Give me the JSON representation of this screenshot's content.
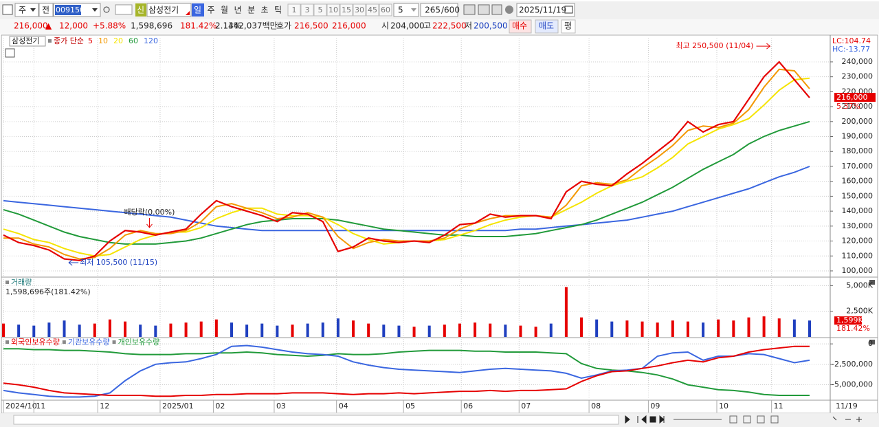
{
  "toolbar": {
    "market": "주",
    "scope": "전",
    "code": "009150",
    "badge": "신",
    "name": "삼성전기",
    "periods": [
      "일",
      "주",
      "월",
      "년",
      "분",
      "초",
      "틱"
    ],
    "intervals": [
      "1",
      "3",
      "5",
      "10",
      "15",
      "30",
      "45",
      "60"
    ],
    "count": "5",
    "shown": "265",
    "total": "/600",
    "date": "2025/11/19"
  },
  "info_bar": {
    "price": "216,000",
    "change_sign": "▲",
    "change": "12,000",
    "change_pct": "+5.88%",
    "volume": "1,598,696",
    "volume_ratio": "181.42%",
    "turnover": "2.14%",
    "amount": "342,037백만",
    "quote_label": "호가",
    "ask": "216,500",
    "bid": "216,000",
    "open_label": "시",
    "open": "204,000",
    "high_label": "고",
    "high": "222,500",
    "low_label": "저",
    "low": "200,500",
    "buy": "매수",
    "sell": "매도",
    "eval": "평"
  },
  "chart_data": [
    {
      "type": "line",
      "title": "삼성전기",
      "subtitle": "종가 단순",
      "grid": true,
      "xlim": [
        0,
        53
      ],
      "ylim": [
        96300,
        256100
      ],
      "yticks": [
        {
          "value": 100000,
          "label": "100,000"
        },
        {
          "value": 110000,
          "label": "110,000"
        },
        {
          "value": 120000,
          "label": "120,000"
        },
        {
          "value": 130000,
          "label": "130,000"
        },
        {
          "value": 140000,
          "label": "140,000"
        },
        {
          "value": 150000,
          "label": "150,000"
        },
        {
          "value": 160000,
          "label": "160,000"
        },
        {
          "value": 170000,
          "label": "170,000"
        },
        {
          "value": 180000,
          "label": "180,000"
        },
        {
          "value": 190000,
          "label": "190,000"
        },
        {
          "value": 200000,
          "label": "200,000"
        },
        {
          "value": 210000,
          "label": "210,000"
        },
        {
          "value": 220000,
          "label": "220,000"
        },
        {
          "value": 230000,
          "label": "230,000"
        },
        {
          "value": 240000,
          "label": "240,000"
        }
      ],
      "series": [
        {
          "name": "5",
          "color": "#e60000",
          "values": [
            124000,
            119000,
            117000,
            114000,
            108000,
            107000,
            110000,
            120000,
            127000,
            126000,
            124000,
            126000,
            128000,
            138000,
            147000,
            143000,
            140000,
            137000,
            133000,
            139000,
            138000,
            133000,
            113000,
            116000,
            122000,
            120000,
            119000,
            120000,
            119000,
            124000,
            131000,
            132000,
            138000,
            136000,
            137000,
            137000,
            135000,
            153000,
            160000,
            158000,
            157000,
            165000,
            172000,
            180000,
            188000,
            200000,
            193000,
            198000,
            200000,
            215000,
            230000,
            240000,
            228000,
            216000
          ]
        },
        {
          "name": "10",
          "color": "#f39800",
          "values": [
            122000,
            122000,
            118000,
            116000,
            111000,
            108000,
            109000,
            115000,
            124000,
            127000,
            125000,
            125000,
            127000,
            133000,
            143000,
            145000,
            142000,
            139000,
            135000,
            136000,
            139000,
            136000,
            123000,
            115000,
            119000,
            121000,
            120000,
            120000,
            120000,
            122000,
            128000,
            132000,
            135000,
            137000,
            137000,
            137000,
            136000,
            144000,
            157000,
            159000,
            158000,
            161000,
            169000,
            176000,
            184000,
            194000,
            197000,
            196000,
            199000,
            208000,
            223000,
            235000,
            234000,
            222000
          ]
        },
        {
          "name": "20",
          "color": "#f5e400",
          "values": [
            128000,
            125000,
            121000,
            119000,
            115000,
            112000,
            110000,
            111000,
            116000,
            121000,
            124000,
            126000,
            126000,
            129000,
            135000,
            139000,
            142000,
            142000,
            138000,
            137000,
            137000,
            136000,
            131000,
            125000,
            121000,
            118000,
            119000,
            120000,
            120000,
            121000,
            124000,
            127000,
            131000,
            134000,
            136000,
            137000,
            136000,
            141000,
            146000,
            152000,
            157000,
            160000,
            163000,
            169000,
            176000,
            185000,
            190000,
            195000,
            198000,
            202000,
            211000,
            221000,
            228000,
            229000
          ]
        },
        {
          "name": "60",
          "color": "#219a3a",
          "values": [
            141000,
            138000,
            134000,
            130000,
            126000,
            123000,
            121000,
            119000,
            118000,
            118000,
            118000,
            119000,
            120000,
            122000,
            125000,
            128000,
            131000,
            133000,
            134000,
            135000,
            135000,
            135000,
            134000,
            132000,
            130000,
            128000,
            127000,
            126000,
            125000,
            124000,
            124000,
            123000,
            123000,
            123000,
            124000,
            125000,
            127000,
            129000,
            131000,
            134000,
            138000,
            142000,
            146000,
            151000,
            156000,
            162000,
            168000,
            173000,
            178000,
            185000,
            190000,
            194000,
            197000,
            200000
          ]
        },
        {
          "name": "120",
          "color": "#3a66e0",
          "values": [
            147000,
            146000,
            145000,
            144000,
            143000,
            142000,
            141000,
            140000,
            139000,
            138000,
            137000,
            136000,
            134000,
            132000,
            130000,
            129000,
            128000,
            127000,
            127000,
            127000,
            127000,
            127000,
            127000,
            127000,
            127000,
            127000,
            127000,
            127000,
            127000,
            127000,
            127000,
            127000,
            127000,
            127000,
            128000,
            128000,
            129000,
            130000,
            131000,
            132000,
            133000,
            134000,
            136000,
            138000,
            140000,
            143000,
            146000,
            149000,
            152000,
            155000,
            159000,
            163000,
            166000,
            170000
          ]
        }
      ],
      "indicator_labels": [
        {
          "text": "LC:104.74",
          "color": "#e60000"
        },
        {
          "text": "HC:-13.77",
          "color": "#3a66e0"
        }
      ],
      "last_label": "216,000",
      "last_change": "5.37%",
      "annotations": [
        {
          "text": "최고 250,500 (11/04)",
          "x": 50.4,
          "y": 250500,
          "color": "#e60000",
          "arrow": "right"
        },
        {
          "text": "최저 105,500 (11/15)",
          "x": 4.3,
          "y": 105500,
          "color": "#1a3fbf",
          "arrow": "left"
        },
        {
          "text": "배당락(0.00%)",
          "x": 9.6,
          "y": 129000,
          "color": "#e60000",
          "arrow": "down"
        }
      ]
    },
    {
      "type": "bar",
      "title": "거래량",
      "subtitle": "1,598,696주(181.42%)",
      "grid": true,
      "xlim": [
        0,
        53
      ],
      "ylim": [
        0,
        5694
      ],
      "yticks": [
        {
          "value": 2500,
          "label": "2,500K"
        },
        {
          "value": 5000,
          "label": "5,000K"
        }
      ],
      "values": [
        1300,
        1200,
        1100,
        1400,
        1600,
        1200,
        1300,
        1700,
        1500,
        1200,
        1100,
        1300,
        1400,
        1500,
        1700,
        1400,
        1200,
        1300,
        1100,
        1200,
        1300,
        1400,
        1800,
        1600,
        1300,
        1200,
        1100,
        1000,
        1100,
        1200,
        1300,
        1400,
        1300,
        1200,
        1100,
        1000,
        1300,
        4860,
        1900,
        1700,
        1500,
        1600,
        1500,
        1400,
        1600,
        1500,
        1400,
        1700,
        1600,
        1900,
        2000,
        1800,
        1700,
        1599
      ],
      "up_color": "#e60000",
      "down_color": "#1f3fbf",
      "last_label": "1,599K",
      "last_ratio": "181.42%"
    },
    {
      "type": "line",
      "grid": true,
      "xlim": [
        0,
        53
      ],
      "ylim": [
        -6720000,
        600000
      ],
      "yticks": [
        0,
        {
          "value": -2500000,
          "label": "-2,500,000"
        },
        {
          "value": -5000000,
          "label": "-5,000,000"
        }
      ],
      "series": [
        {
          "name": "외국인보유수량",
          "color": "#e60000",
          "values": [
            -4800000,
            -5000000,
            -5300000,
            -5700000,
            -6000000,
            -6100000,
            -6200000,
            -6300000,
            -6300000,
            -6300000,
            -6400000,
            -6400000,
            -6300000,
            -6300000,
            -6200000,
            -6200000,
            -6100000,
            -6100000,
            -6100000,
            -6000000,
            -6000000,
            -6000000,
            -6100000,
            -6200000,
            -6100000,
            -6100000,
            -6000000,
            -6100000,
            -6000000,
            -5900000,
            -5800000,
            -5800000,
            -5700000,
            -5800000,
            -5700000,
            -5700000,
            -5600000,
            -5500000,
            -4600000,
            -3900000,
            -3400000,
            -3300000,
            -3000000,
            -2700000,
            -2300000,
            -2000000,
            -2200000,
            -1700000,
            -1500000,
            -1000000,
            -700000,
            -500000,
            -300000,
            -300000
          ]
        },
        {
          "name": "기관보유수량",
          "color": "#3a66e0",
          "values": [
            -5700000,
            -6000000,
            -6200000,
            -6400000,
            -6500000,
            -6500000,
            -6400000,
            -6000000,
            -4500000,
            -3300000,
            -2500000,
            -2300000,
            -2200000,
            -1800000,
            -1300000,
            -300000,
            -200000,
            -400000,
            -700000,
            -1000000,
            -1200000,
            -1300000,
            -1500000,
            -2200000,
            -2600000,
            -2900000,
            -3100000,
            -3200000,
            -3300000,
            -3400000,
            -3500000,
            -3300000,
            -3100000,
            -3000000,
            -3100000,
            -3200000,
            -3300000,
            -3600000,
            -4200000,
            -3800000,
            -3300000,
            -3200000,
            -3000000,
            -1500000,
            -1100000,
            -1000000,
            -2000000,
            -1500000,
            -1500000,
            -1200000,
            -1300000,
            -1800000,
            -2300000,
            -2000000
          ]
        },
        {
          "name": "개인보유수량",
          "color": "#219a3a",
          "values": [
            -600000,
            -600000,
            -700000,
            -700000,
            -800000,
            -800000,
            -900000,
            -1000000,
            -1200000,
            -1300000,
            -1300000,
            -1300000,
            -1200000,
            -1200000,
            -1100000,
            -1100000,
            -1000000,
            -1100000,
            -1300000,
            -1400000,
            -1500000,
            -1400000,
            -1200000,
            -1300000,
            -1300000,
            -1200000,
            -1000000,
            -900000,
            -800000,
            -800000,
            -800000,
            -900000,
            -900000,
            -1000000,
            -1000000,
            -1000000,
            -1100000,
            -1200000,
            -2400000,
            -3000000,
            -3200000,
            -3300000,
            -3500000,
            -3800000,
            -4300000,
            -5000000,
            -5300000,
            -5600000,
            -5700000,
            -5900000,
            -6200000,
            -6300000,
            -6300000,
            -6300000
          ]
        }
      ],
      "xticks": [
        {
          "value": 0,
          "label": "2024/10"
        },
        {
          "value": 2.0,
          "label": "11"
        },
        {
          "value": 6.2,
          "label": "12"
        },
        {
          "value": 10.3,
          "label": "2025/01"
        },
        {
          "value": 13.8,
          "label": "02"
        },
        {
          "value": 17.8,
          "label": "03"
        },
        {
          "value": 21.9,
          "label": "04"
        },
        {
          "value": 26.3,
          "label": "05"
        },
        {
          "value": 30.1,
          "label": "06"
        },
        {
          "value": 33.9,
          "label": "07"
        },
        {
          "value": 38.5,
          "label": "08"
        },
        {
          "value": 42.4,
          "label": "09"
        },
        {
          "value": 46.9,
          "label": "10"
        },
        {
          "value": 50.5,
          "label": "11"
        }
      ],
      "x_end_label": "11/19"
    }
  ]
}
